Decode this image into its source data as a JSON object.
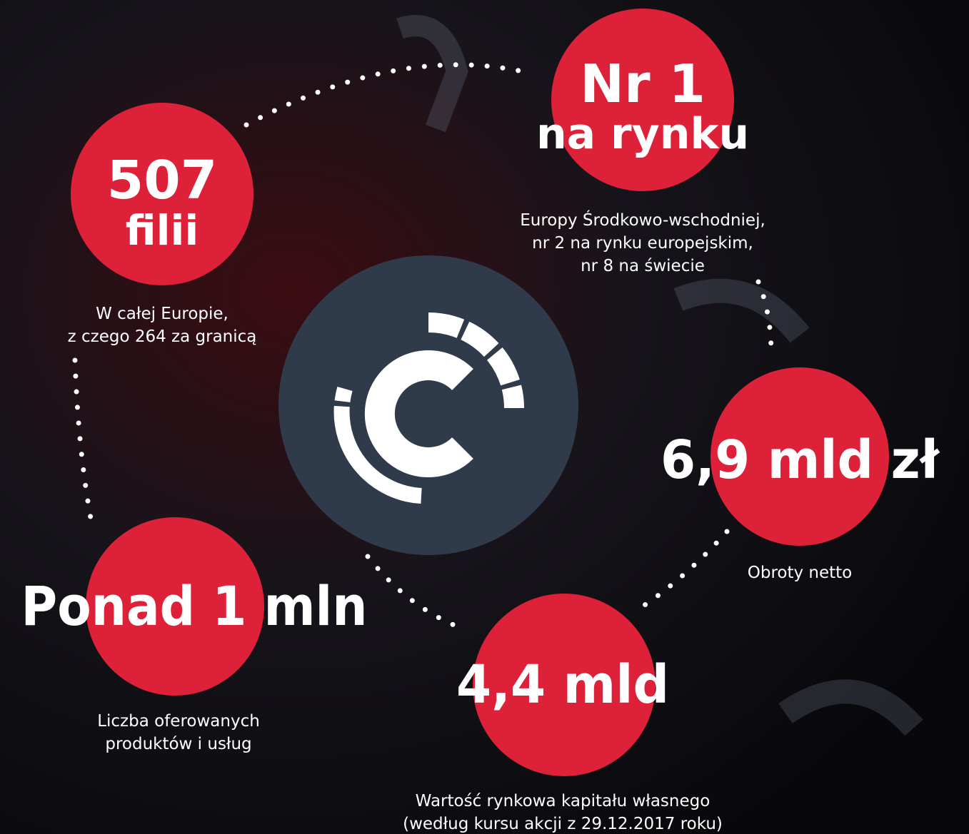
{
  "stats": [
    {
      "headline": [
        "507",
        "filii"
      ],
      "description": [
        "W całej Europie,",
        "z czego 264 za granicą"
      ]
    },
    {
      "headline": [
        "Nr 1",
        "na rynku"
      ],
      "description": [
        "Europy Środkowo-wschodniej,",
        "nr 2 na rynku europejskim,",
        "nr 8 na świecie"
      ]
    },
    {
      "headline": [
        "6,9 mld zł"
      ],
      "description": [
        "Obroty netto"
      ]
    },
    {
      "headline": [
        "4,4 mld"
      ],
      "description": [
        "Wartość rynkowa kapitału własnego",
        "(według kursu akcji z 29.12.2017 roku)"
      ]
    },
    {
      "headline": [
        "Ponad 1 mln"
      ],
      "description": [
        "Liczba oferowanych",
        "produktów i usług"
      ]
    }
  ]
}
